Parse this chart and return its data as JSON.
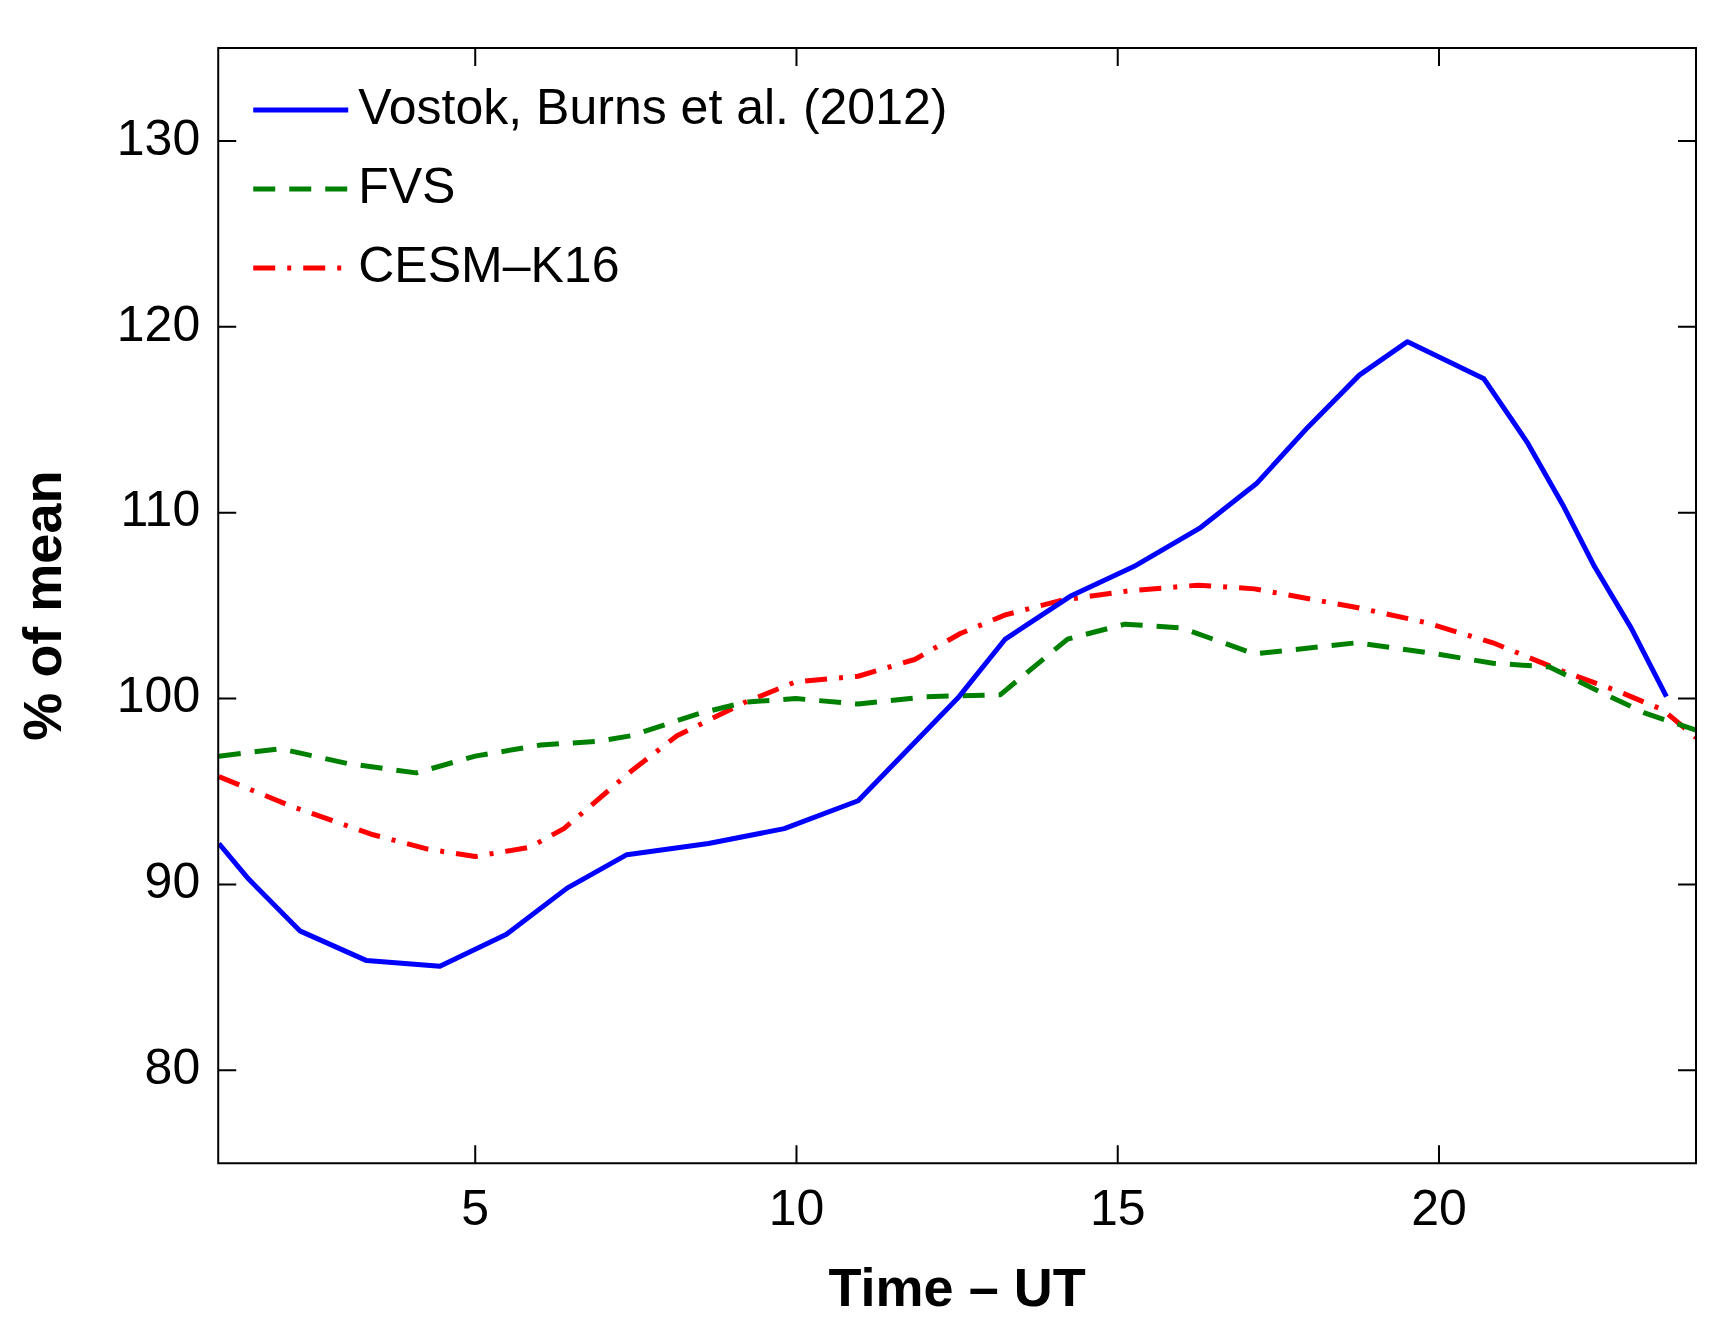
{
  "chart_data": {
    "type": "line",
    "xlabel": "Time – UT",
    "ylabel": "% of mean",
    "xlim": [
      1,
      24
    ],
    "ylim": [
      75,
      135
    ],
    "xticks": [
      5,
      10,
      15,
      20
    ],
    "yticks": [
      80,
      90,
      100,
      110,
      120,
      130
    ],
    "grid": false,
    "legend": "top left",
    "marker": "none",
    "series": [
      {
        "name": "Vostok, Burns et al. (2012)",
        "color": "#0000ff",
        "line_style": "solid",
        "x": [
          1.01,
          1.47,
          2.27,
          3.31,
          4.45,
          5.48,
          6.43,
          7.36,
          8.63,
          9.81,
          10.96,
          12.53,
          13.25,
          14.26,
          15.25,
          16.29,
          17.17,
          17.96,
          18.76,
          19.51,
          20.7,
          21.37,
          21.93,
          22.42,
          22.99,
          23.54
        ],
        "values": [
          92.2,
          90.3,
          87.5,
          85.9,
          85.6,
          87.3,
          89.8,
          91.6,
          92.2,
          93.0,
          94.5,
          100.1,
          103.2,
          105.5,
          107.1,
          109.2,
          111.6,
          114.6,
          117.4,
          119.2,
          117.2,
          113.8,
          110.4,
          107.1,
          103.8,
          100.1
        ]
      },
      {
        "name": "FVS",
        "color": "#008000",
        "line_style": "dashed",
        "x": [
          1.01,
          1.97,
          3.02,
          4.08,
          5.0,
          6.02,
          6.9,
          7.43,
          8.49,
          9.2,
          9.99,
          10.96,
          12.02,
          13.17,
          14.22,
          15.11,
          15.99,
          17.13,
          18.72,
          19.96,
          20.84,
          21.72,
          22.6,
          23.22,
          24.0
        ],
        "values": [
          96.9,
          97.3,
          96.5,
          96.0,
          96.9,
          97.5,
          97.7,
          98.0,
          99.2,
          99.8,
          100.0,
          99.7,
          100.1,
          100.2,
          103.2,
          104.0,
          103.8,
          102.4,
          103.0,
          102.4,
          101.9,
          101.7,
          100.2,
          99.2,
          98.3
        ]
      },
      {
        "name": "CESM–K16",
        "color": "#ff0000",
        "line_style": "dashdot",
        "x": [
          1.01,
          2.14,
          3.38,
          4.26,
          5.0,
          5.85,
          6.38,
          7.43,
          8.14,
          9.2,
          9.99,
          10.96,
          11.84,
          12.55,
          13.25,
          14.14,
          15.19,
          16.25,
          17.13,
          18.72,
          19.78,
          20.84,
          21.9,
          22.78,
          23.48,
          24.0
        ],
        "values": [
          95.8,
          94.2,
          92.7,
          91.9,
          91.5,
          92.0,
          93.0,
          96.1,
          98.0,
          99.8,
          100.9,
          101.2,
          102.1,
          103.5,
          104.5,
          105.3,
          105.8,
          106.1,
          105.9,
          104.9,
          104.1,
          103.0,
          101.5,
          100.4,
          99.4,
          97.9
        ]
      }
    ]
  }
}
